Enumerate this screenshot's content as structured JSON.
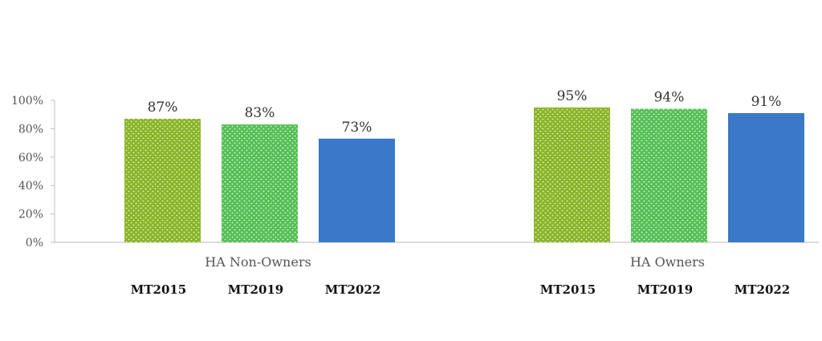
{
  "chart_data": {
    "type": "bar",
    "title": "",
    "xlabel": "",
    "ylabel": "",
    "categories": [
      "HA Non-Owners",
      "HA Owners"
    ],
    "series": [
      {
        "name": "MT2015",
        "values": [
          87,
          95
        ],
        "color": "#8ab528",
        "pattern": "dotted"
      },
      {
        "name": "MT2019",
        "values": [
          83,
          94
        ],
        "color": "#55c055",
        "pattern": "dotted"
      },
      {
        "name": "MT2022",
        "values": [
          73,
          91
        ],
        "color": "#3a78c9",
        "pattern": "solid"
      }
    ],
    "data_labels": [
      [
        "87%",
        "95%"
      ],
      [
        "83%",
        "94%"
      ],
      [
        "73%",
        "91%"
      ]
    ],
    "ylim": [
      0,
      100
    ],
    "yticks": [
      0,
      20,
      40,
      60,
      80,
      100
    ],
    "ytick_labels": [
      "0%",
      "20%",
      "40%",
      "60%",
      "80%",
      "100%"
    ],
    "grid": false,
    "legend_placement": "bottom, under each group"
  }
}
